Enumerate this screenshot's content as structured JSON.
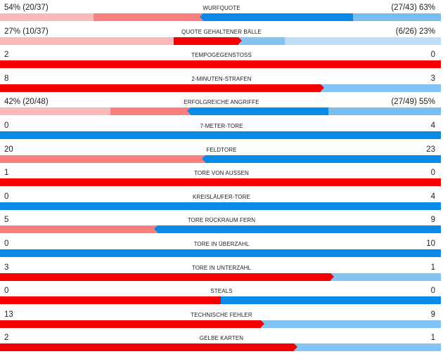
{
  "colors": {
    "left_main": "#f40000",
    "left_light": "#fa8080",
    "right_main": "#0a8ae6",
    "right_light": "#85c3f3"
  },
  "rows": [
    {
      "name": "wurfquote",
      "title": "WURFQUOTE",
      "left": "54% (20/37)",
      "right": "(27/43) 63%",
      "style": "pct",
      "left_share": 0.54,
      "right_share": 0.63
    },
    {
      "name": "quote-gehaltener-baelle",
      "title": "QUOTE GEHALTENER BÄLLE",
      "left": "27% (10/37)",
      "right": "(6/26) 23%",
      "style": "pct",
      "left_share": 0.27,
      "right_share": 0.23
    },
    {
      "name": "tempogegenstoss",
      "title": "TEMPOGEGENSTOSS",
      "left": "2",
      "right": "0",
      "style": "count",
      "left_value": 2,
      "right_value": 0
    },
    {
      "name": "2-minuten-strafen",
      "title": "2-MINUTEN-STRAFEN",
      "left": "8",
      "right": "3",
      "style": "count",
      "left_value": 8,
      "right_value": 3
    },
    {
      "name": "erfolgreiche-angriffe",
      "title": "ERFOLGREICHE ANGRIFFE",
      "left": "42% (20/48)",
      "right": "(27/49) 55%",
      "style": "pct",
      "left_share": 0.42,
      "right_share": 0.55
    },
    {
      "name": "7-meter-tore",
      "title": "7-METER-TORE",
      "left": "0",
      "right": "4",
      "style": "count",
      "left_value": 0,
      "right_value": 4
    },
    {
      "name": "feldtore",
      "title": "FELDTORE",
      "left": "20",
      "right": "23",
      "style": "count",
      "left_value": 20,
      "right_value": 23
    },
    {
      "name": "tore-von-aussen",
      "title": "TORE VON AUSSEN",
      "left": "1",
      "right": "0",
      "style": "count",
      "left_value": 1,
      "right_value": 0
    },
    {
      "name": "kreislaeufer-tore",
      "title": "KREISLÄUFER-TORE",
      "left": "0",
      "right": "4",
      "style": "count",
      "left_value": 0,
      "right_value": 4
    },
    {
      "name": "tore-rueckraum-fern",
      "title": "TORE RÜCKRAUM FERN",
      "left": "5",
      "right": "9",
      "style": "count",
      "left_value": 5,
      "right_value": 9
    },
    {
      "name": "tore-in-ueberzahl",
      "title": "TORE IN ÜBERZAHL",
      "left": "0",
      "right": "10",
      "style": "count",
      "left_value": 0,
      "right_value": 10
    },
    {
      "name": "tore-in-unterzahl",
      "title": "TORE IN UNTERZAHL",
      "left": "3",
      "right": "1",
      "style": "count",
      "left_value": 3,
      "right_value": 1
    },
    {
      "name": "steals",
      "title": "STEALS",
      "left": "0",
      "right": "0",
      "style": "count",
      "left_value": 0,
      "right_value": 0
    },
    {
      "name": "technische-fehler",
      "title": "TECHNISCHE FEHLER",
      "left": "13",
      "right": "9",
      "style": "count",
      "left_value": 13,
      "right_value": 9
    },
    {
      "name": "gelbe-karten",
      "title": "GELBE KARTEN",
      "left": "2",
      "right": "1",
      "style": "count",
      "left_value": 2,
      "right_value": 1
    }
  ]
}
